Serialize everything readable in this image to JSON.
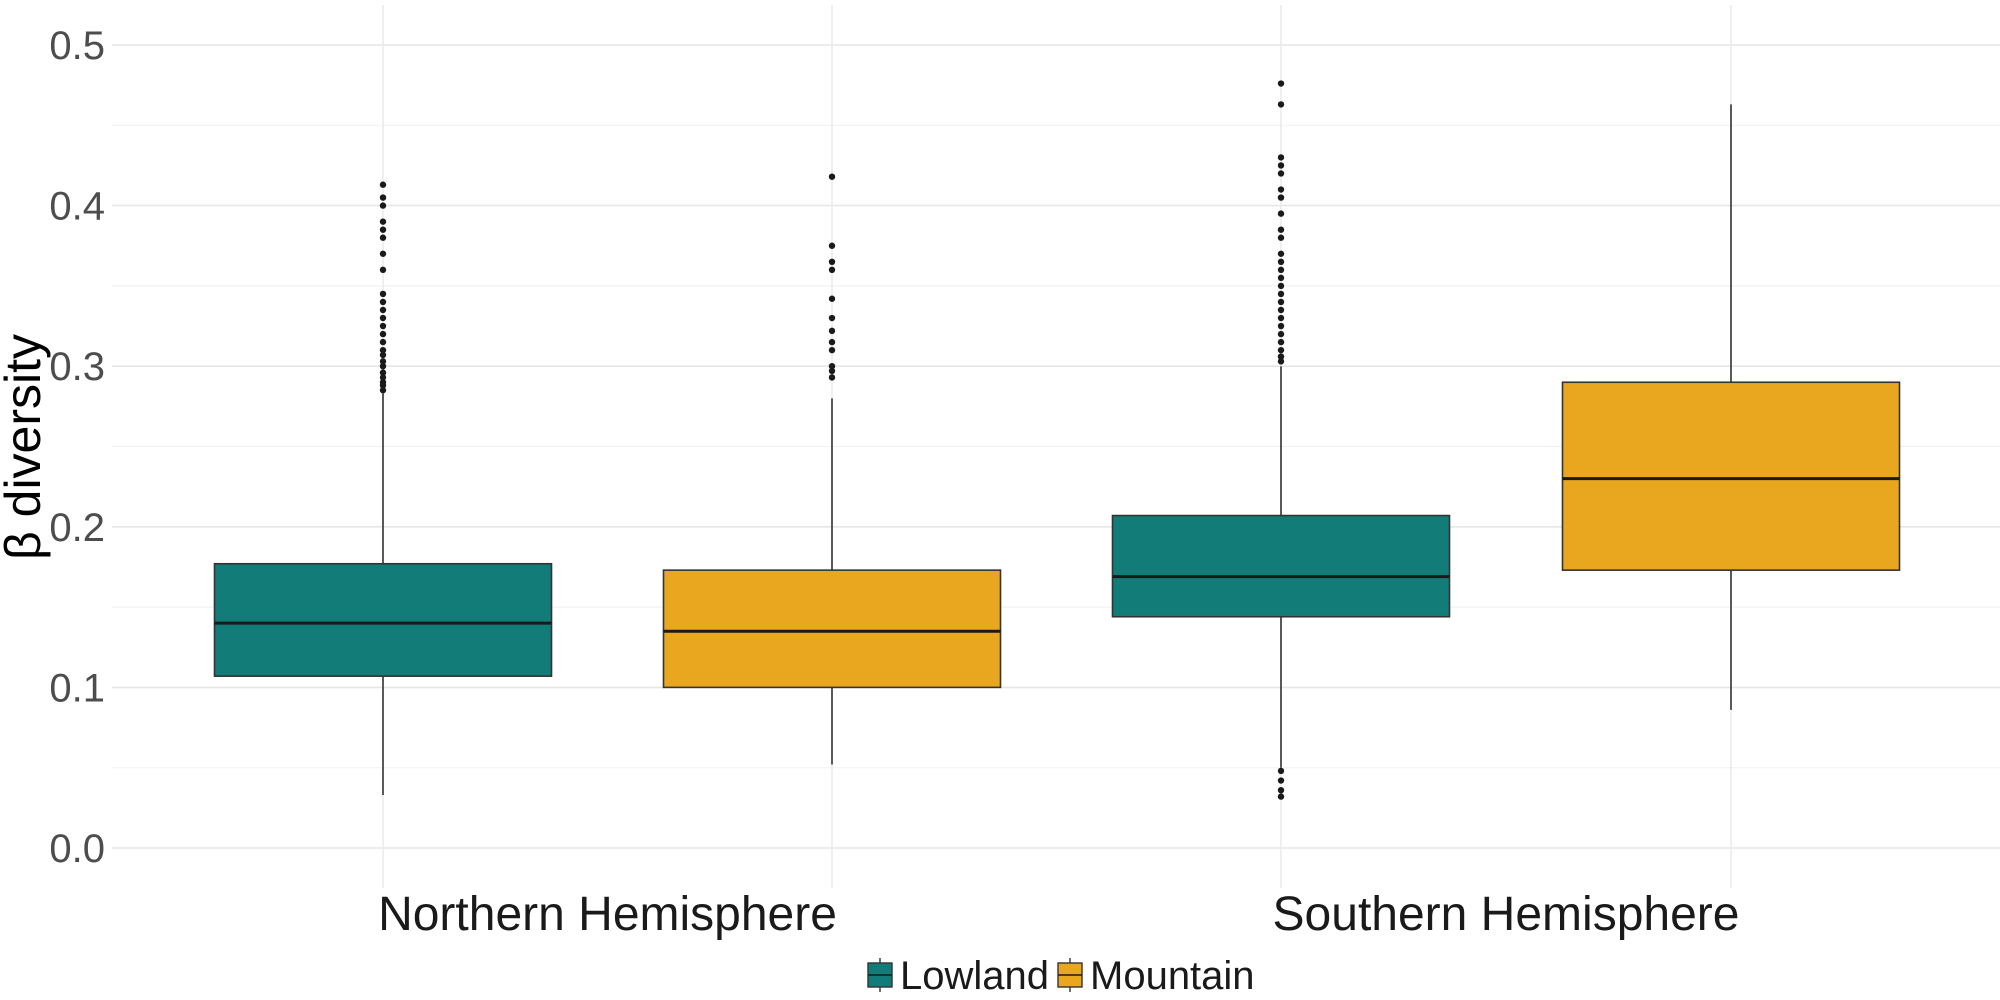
{
  "chart_data": {
    "type": "boxplot",
    "ylabel": "β diversity",
    "xlabel": "",
    "ylim": [
      -0.02,
      0.525
    ],
    "yticks": [
      0.0,
      0.1,
      0.2,
      0.3,
      0.4,
      0.5
    ],
    "ytick_labels": [
      "0.0",
      "0.1",
      "0.2",
      "0.3",
      "0.4",
      "0.5"
    ],
    "grid": true,
    "legend_position": "bottom",
    "categories": [
      "Northern Hemisphere",
      "Southern Hemisphere"
    ],
    "series": [
      {
        "name": "Lowland",
        "color": "#127D78",
        "boxes": [
          {
            "category": "Northern Hemisphere",
            "whisker_low": 0.033,
            "q1": 0.107,
            "median": 0.14,
            "q3": 0.177,
            "whisker_high": 0.283,
            "outliers": [
              0.285,
              0.288,
              0.29,
              0.293,
              0.296,
              0.3,
              0.303,
              0.307,
              0.31,
              0.315,
              0.32,
              0.325,
              0.33,
              0.335,
              0.34,
              0.345,
              0.36,
              0.37,
              0.38,
              0.385,
              0.39,
              0.4,
              0.405,
              0.413
            ]
          },
          {
            "category": "Southern Hemisphere",
            "whisker_low": 0.05,
            "q1": 0.144,
            "median": 0.169,
            "q3": 0.207,
            "whisker_high": 0.3,
            "outliers": [
              0.032,
              0.036,
              0.042,
              0.048,
              0.303,
              0.306,
              0.31,
              0.315,
              0.32,
              0.325,
              0.33,
              0.335,
              0.34,
              0.345,
              0.35,
              0.355,
              0.36,
              0.365,
              0.37,
              0.38,
              0.385,
              0.395,
              0.405,
              0.41,
              0.42,
              0.425,
              0.43,
              0.463,
              0.476
            ]
          }
        ]
      },
      {
        "name": "Mountain",
        "color": "#E8A71E",
        "boxes": [
          {
            "category": "Northern Hemisphere",
            "whisker_low": 0.052,
            "q1": 0.1,
            "median": 0.135,
            "q3": 0.173,
            "whisker_high": 0.28,
            "outliers": [
              0.293,
              0.297,
              0.3,
              0.31,
              0.315,
              0.322,
              0.33,
              0.342,
              0.36,
              0.365,
              0.375,
              0.418
            ]
          },
          {
            "category": "Southern Hemisphere",
            "whisker_low": 0.086,
            "q1": 0.173,
            "median": 0.23,
            "q3": 0.29,
            "whisker_high": 0.463,
            "outliers": []
          }
        ]
      }
    ]
  }
}
